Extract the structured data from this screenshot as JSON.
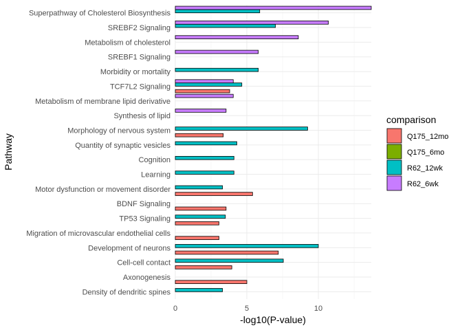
{
  "chart_data": {
    "type": "bar",
    "orientation": "horizontal",
    "xlabel": "-log10(P-value)",
    "ylabel": "Pathway",
    "xlim": [
      0,
      13.7
    ],
    "xticks": [
      0,
      5,
      10
    ],
    "grid": true,
    "legend": {
      "title": "comparison",
      "position": "right"
    },
    "categories": [
      "Superpathway of Cholesterol Biosynthesis",
      "SREBF2 Signaling",
      "Metabolism of cholesterol",
      "SREBF1 Signaling",
      "Morbidity or mortality",
      "TCF7L2 Signaling",
      "Metabolism of membrane lipid derivative",
      "Synthesis of lipid",
      "Morphology of nervous system",
      "Quantity of synaptic vesicles",
      "Cognition",
      "Learning",
      "Motor dysfunction or movement disorder",
      "BDNF Signaling",
      "TP53 Signaling",
      "Migration of microvascular endothelial cells",
      "Development of neurons",
      "Cell-cell contact",
      "Axonogenesis",
      "Density of dendritic spines"
    ],
    "series": [
      {
        "name": "Q175_12mo",
        "color": "#F8766D",
        "values": [
          0,
          0,
          0,
          0,
          0,
          3.8,
          0,
          0,
          3.35,
          0,
          0,
          0,
          5.4,
          3.55,
          3.05,
          3.05,
          7.2,
          3.95,
          5.0,
          0
        ]
      },
      {
        "name": "Q175_6mo",
        "color": "#7CAE00",
        "values": [
          0,
          0,
          0,
          0,
          0,
          0,
          0,
          0,
          0,
          0,
          0,
          0,
          0,
          0,
          0,
          0,
          0,
          0,
          0,
          0
        ]
      },
      {
        "name": "R62_12wk",
        "color": "#00BFC4",
        "values": [
          5.9,
          7.0,
          0,
          0,
          5.8,
          4.65,
          0,
          0,
          9.25,
          4.3,
          4.1,
          4.1,
          3.3,
          0,
          3.5,
          0,
          10.0,
          7.55,
          0,
          3.3
        ]
      },
      {
        "name": "R62_6wk",
        "color": "#C77CFF",
        "values": [
          13.7,
          10.7,
          8.6,
          5.8,
          0,
          4.05,
          4.05,
          3.55,
          0,
          0,
          0,
          0,
          0,
          0,
          0,
          0,
          0,
          0,
          0,
          0
        ]
      }
    ]
  }
}
